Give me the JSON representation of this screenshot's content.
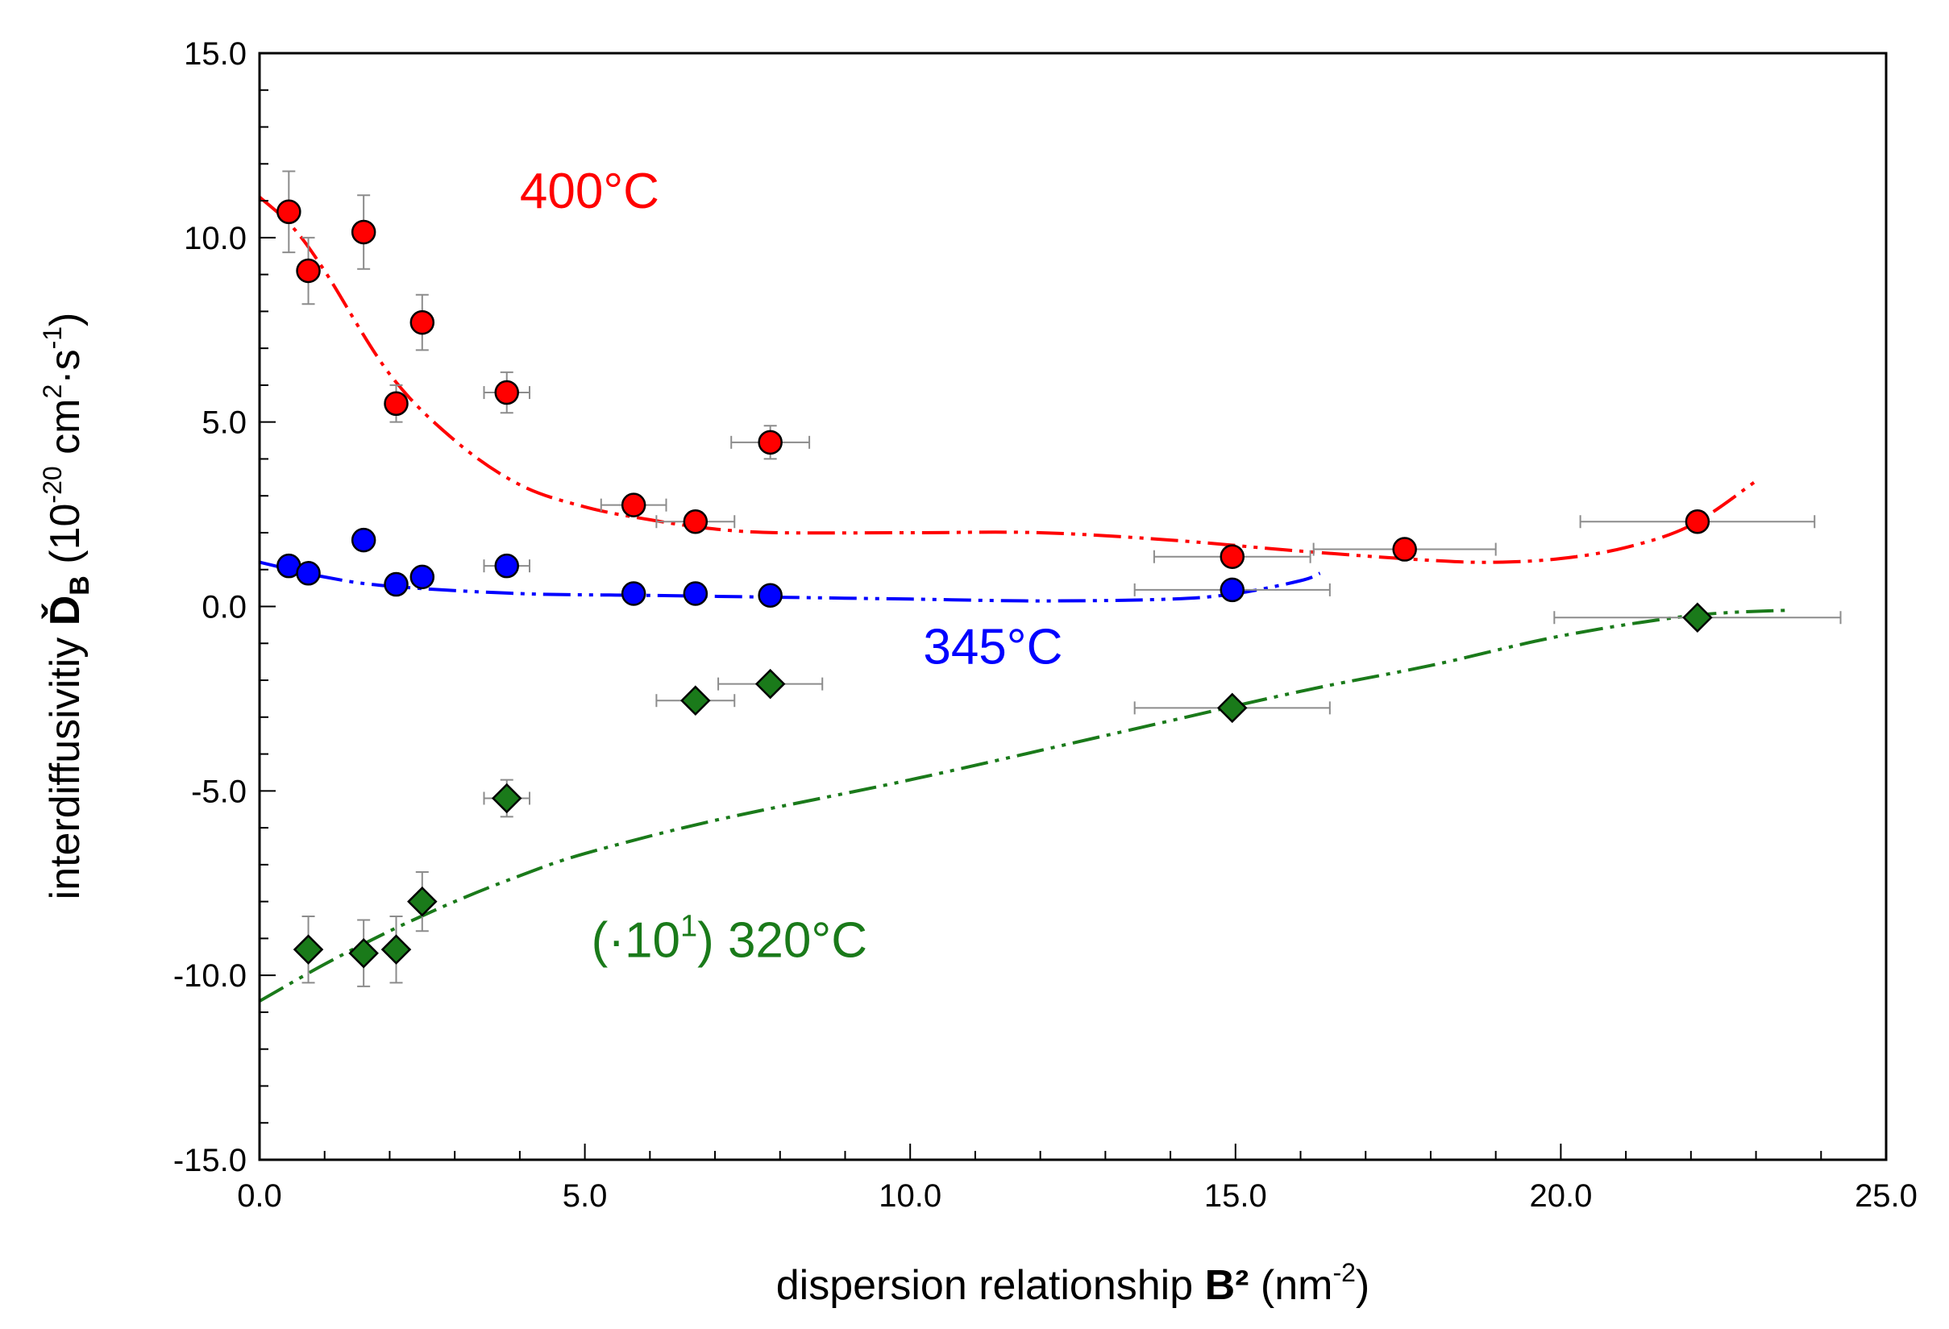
{
  "chart_data": {
    "type": "scatter",
    "xlabel": {
      "prefix": "dispersion relationship ",
      "bold": "B²",
      "suffix": " (nm",
      "sup": "-2",
      "end": ")"
    },
    "ylabel": {
      "prefix": "interdiffusivitiy ",
      "bold": "Ď",
      "sub": "B",
      "unit_open": " (10",
      "sup1": "-20",
      "unit_mid": " cm",
      "sup2": "2",
      "unit_mid2": "·s",
      "sup3": "-1",
      "unit_close": ")"
    },
    "xlim": [
      0,
      25
    ],
    "ylim": [
      -15,
      15
    ],
    "x_ticks": [
      "0.0",
      "5.0",
      "10.0",
      "15.0",
      "20.0",
      "25.0"
    ],
    "y_ticks": [
      "15.0",
      "10.0",
      "5.0",
      "0.0",
      "-5.0",
      "-10.0",
      "-15.0"
    ],
    "grid": false,
    "series": [
      {
        "name": "400°C",
        "color": "#ff0000",
        "marker": "circle",
        "points": [
          {
            "x": 0.45,
            "y": 10.7,
            "yerr": 1.1
          },
          {
            "x": 0.75,
            "y": 9.1,
            "yerr": 0.9
          },
          {
            "x": 1.6,
            "y": 10.15,
            "yerr": 1.0
          },
          {
            "x": 2.1,
            "y": 5.5,
            "yerr": 0.5
          },
          {
            "x": 2.5,
            "y": 7.7,
            "yerr": 0.75
          },
          {
            "x": 3.8,
            "y": 5.8,
            "yerr": 0.55,
            "xerr": 0.35
          },
          {
            "x": 5.75,
            "y": 2.75,
            "xerr": 0.5
          },
          {
            "x": 6.7,
            "y": 2.3,
            "xerr": 0.6
          },
          {
            "x": 7.85,
            "y": 4.45,
            "yerr": 0.45,
            "xerr": 0.6
          },
          {
            "x": 14.95,
            "y": 1.35,
            "xerr": 1.2
          },
          {
            "x": 17.6,
            "y": 1.55,
            "xerr": 1.4
          },
          {
            "x": 22.1,
            "y": 2.3,
            "xerr": 1.8
          }
        ],
        "fit": [
          [
            0,
            11.1
          ],
          [
            0.5,
            10.3
          ],
          [
            1,
            9.1
          ],
          [
            2,
            6.3
          ],
          [
            3,
            4.5
          ],
          [
            4,
            3.3
          ],
          [
            5,
            2.7
          ],
          [
            6,
            2.35
          ],
          [
            7,
            2.1
          ],
          [
            8,
            2.0
          ],
          [
            10,
            2.0
          ],
          [
            12,
            2.0
          ],
          [
            14,
            1.8
          ],
          [
            16,
            1.5
          ],
          [
            18,
            1.25
          ],
          [
            19,
            1.2
          ],
          [
            20,
            1.3
          ],
          [
            21,
            1.6
          ],
          [
            22,
            2.2
          ],
          [
            23,
            3.4
          ]
        ]
      },
      {
        "name": "345°C",
        "color": "#0000ff",
        "marker": "circle",
        "points": [
          {
            "x": 0.45,
            "y": 1.1
          },
          {
            "x": 0.75,
            "y": 0.9
          },
          {
            "x": 1.6,
            "y": 1.8
          },
          {
            "x": 2.1,
            "y": 0.6
          },
          {
            "x": 2.5,
            "y": 0.8
          },
          {
            "x": 3.8,
            "y": 1.1,
            "xerr": 0.35
          },
          {
            "x": 5.75,
            "y": 0.35
          },
          {
            "x": 6.7,
            "y": 0.35
          },
          {
            "x": 7.85,
            "y": 0.3
          },
          {
            "x": 14.95,
            "y": 0.45,
            "xerr": 1.5
          }
        ],
        "fit": [
          [
            0,
            1.2
          ],
          [
            1,
            0.8
          ],
          [
            2,
            0.55
          ],
          [
            4,
            0.35
          ],
          [
            6,
            0.3
          ],
          [
            8,
            0.25
          ],
          [
            10,
            0.2
          ],
          [
            12,
            0.15
          ],
          [
            14,
            0.2
          ],
          [
            15,
            0.35
          ],
          [
            16,
            0.7
          ],
          [
            16.3,
            0.9
          ]
        ]
      },
      {
        "name": "(·10¹) 320°C",
        "color": "#1a7a1a",
        "marker": "diamond",
        "points": [
          {
            "x": 0.75,
            "y": -9.3,
            "yerr": 0.9
          },
          {
            "x": 1.6,
            "y": -9.4,
            "yerr": 0.9
          },
          {
            "x": 2.1,
            "y": -9.3,
            "yerr": 0.9
          },
          {
            "x": 2.5,
            "y": -8.0,
            "yerr": 0.8
          },
          {
            "x": 3.8,
            "y": -5.2,
            "yerr": 0.5,
            "xerr": 0.35
          },
          {
            "x": 6.7,
            "y": -2.55,
            "xerr": 0.6
          },
          {
            "x": 7.85,
            "y": -2.1,
            "xerr": 0.8
          },
          {
            "x": 14.95,
            "y": -2.75,
            "xerr": 1.5
          },
          {
            "x": 22.1,
            "y": -0.3,
            "xerr": 2.2
          }
        ],
        "fit": [
          [
            0,
            -10.7
          ],
          [
            1,
            -9.7
          ],
          [
            2,
            -8.8
          ],
          [
            3,
            -8.0
          ],
          [
            4,
            -7.3
          ],
          [
            5,
            -6.7
          ],
          [
            7,
            -5.8
          ],
          [
            10,
            -4.7
          ],
          [
            13,
            -3.5
          ],
          [
            16,
            -2.3
          ],
          [
            18,
            -1.6
          ],
          [
            20,
            -0.8
          ],
          [
            22,
            -0.25
          ],
          [
            23.5,
            -0.1
          ]
        ]
      }
    ],
    "annotations": [
      {
        "text": "400°C",
        "x": 4.0,
        "y": 10.8,
        "color": "#ff0000"
      },
      {
        "text": "345°C",
        "x": 10.2,
        "y": -1.55,
        "color": "#0000ff"
      },
      {
        "text": "(·10",
        "sup": "1",
        "rest": ") 320°C",
        "x": 5.1,
        "y": -9.5,
        "color": "#1a7a1a"
      }
    ]
  }
}
